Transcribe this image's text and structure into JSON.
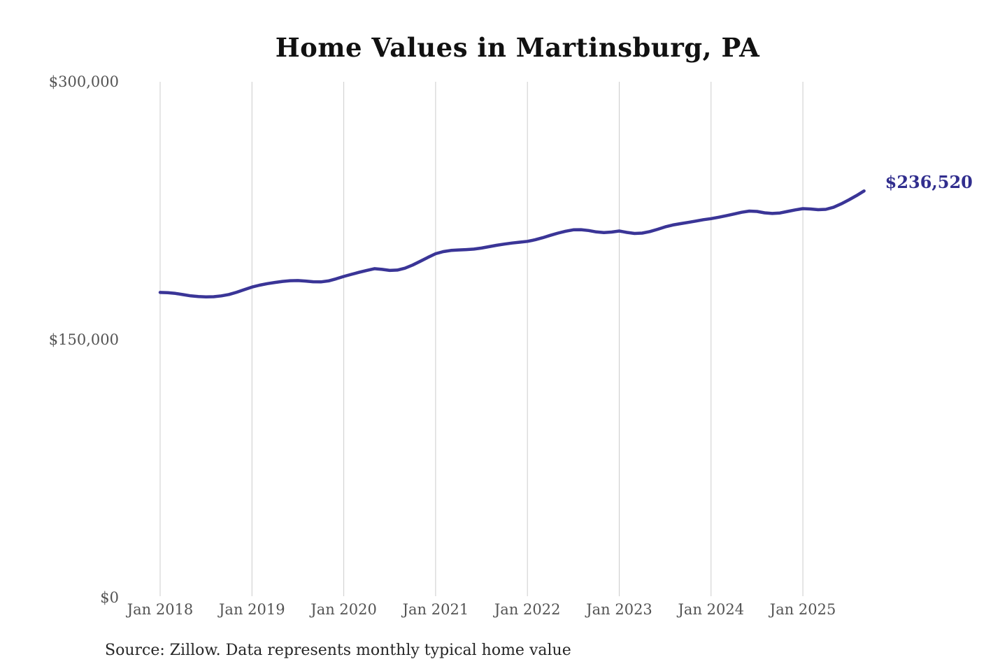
{
  "chart_data": {
    "type": "line",
    "title": "Home Values in Martinsburg, PA",
    "xlabel": "",
    "ylabel": "",
    "ylim": [
      0,
      300000
    ],
    "grid": "vertical-only",
    "legend": "none",
    "line_color": "#3a3597",
    "callout_color": "#312e8e",
    "gridline_color": "#cccccc",
    "frequency": "monthly",
    "x_start": "2018-01",
    "x_end": "2025-09",
    "series_name": "Typical home value",
    "values": [
      177500,
      177300,
      176900,
      176200,
      175500,
      175100,
      174900,
      175000,
      175500,
      176300,
      177600,
      179100,
      180600,
      181700,
      182600,
      183300,
      183900,
      184300,
      184400,
      184100,
      183700,
      183600,
      184200,
      185400,
      186800,
      188000,
      189200,
      190300,
      191300,
      190900,
      190300,
      190500,
      191600,
      193400,
      195600,
      197900,
      200000,
      201200,
      201900,
      202200,
      202400,
      202700,
      203300,
      204100,
      204900,
      205600,
      206200,
      206700,
      207200,
      208100,
      209300,
      210700,
      212000,
      213100,
      213900,
      214000,
      213500,
      212700,
      212300,
      212600,
      213200,
      212400,
      211800,
      212000,
      212900,
      214200,
      215600,
      216700,
      217500,
      218200,
      219000,
      219800,
      220400,
      221200,
      222100,
      223100,
      224100,
      224800,
      224600,
      223800,
      223400,
      223700,
      224600,
      225500,
      226200,
      226000,
      225600,
      225800,
      227000,
      229000,
      231300,
      233800,
      236520
    ],
    "latest_value": 236520,
    "latest_value_label": "$236,520",
    "y_ticks": [
      {
        "label": "$300,000",
        "value": 300000
      },
      {
        "label": "$150,000",
        "value": 150000
      },
      {
        "label": "$0",
        "value": 0
      }
    ],
    "x_ticks": [
      {
        "label": "Jan 2018",
        "month_index": 0
      },
      {
        "label": "Jan 2019",
        "month_index": 12
      },
      {
        "label": "Jan 2020",
        "month_index": 24
      },
      {
        "label": "Jan 2021",
        "month_index": 36
      },
      {
        "label": "Jan 2022",
        "month_index": 48
      },
      {
        "label": "Jan 2023",
        "month_index": 60
      },
      {
        "label": "Jan 2024",
        "month_index": 72
      },
      {
        "label": "Jan 2025",
        "month_index": 84
      }
    ],
    "source_note": "Source: Zillow. Data represents monthly typical home value"
  }
}
